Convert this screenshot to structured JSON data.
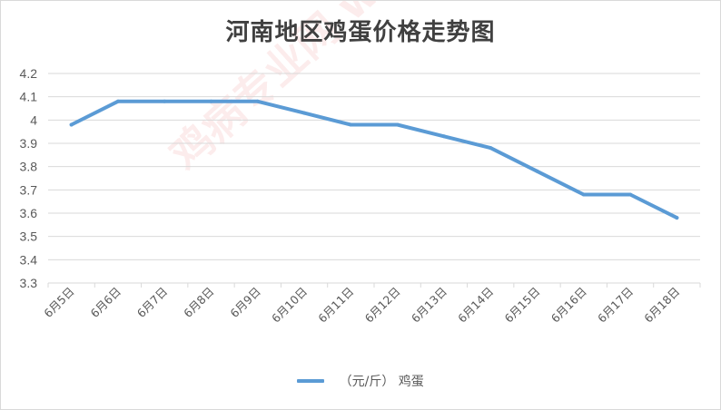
{
  "watermark": "鸡病专业网 www.jbzyw.com",
  "colors": {
    "series": "#5b9bd5",
    "grid": "#d9d9d9",
    "axis_text": "#595959",
    "title": "#404040"
  },
  "chart_data": {
    "type": "line",
    "title": "河南地区鸡蛋价格走势图",
    "xlabel": "",
    "ylabel": "",
    "categories": [
      "6月5日",
      "6月6日",
      "6月7日",
      "6月8日",
      "6月9日",
      "6月10日",
      "6月11日",
      "6月12日",
      "6月13日",
      "6月14日",
      "6月15日",
      "6月16日",
      "6月17日",
      "6月18日"
    ],
    "y_tick_labels": [
      "3.3",
      "3.4",
      "3.5",
      "3.6",
      "3.7",
      "3.8",
      "3.9",
      "4",
      "4.1",
      "4.2"
    ],
    "ylim": [
      3.3,
      4.2
    ],
    "grid": true,
    "legend_position": "bottom",
    "series": [
      {
        "name": "（元/斤） 鸡蛋",
        "values": [
          3.98,
          4.08,
          4.08,
          4.08,
          4.08,
          4.03,
          3.98,
          3.98,
          3.93,
          3.88,
          3.78,
          3.68,
          3.68,
          3.58
        ]
      }
    ]
  }
}
